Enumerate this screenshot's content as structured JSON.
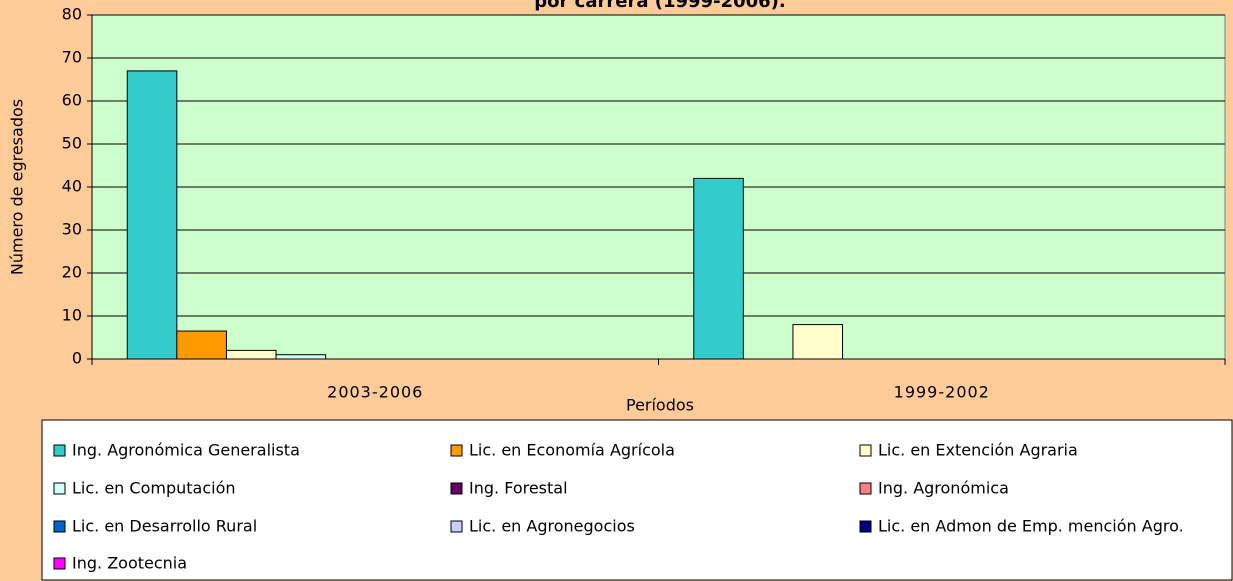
{
  "chart_data": {
    "type": "bar",
    "title": "por carrera (1999-2006).",
    "x_label": "Períodos",
    "y_label": "Número de egresados",
    "categories": [
      "2003-2006",
      "1999-2002"
    ],
    "series": [
      {
        "name": "Ing. Agronómica Generalista",
        "color": "#33CCCC",
        "values": [
          67,
          42
        ]
      },
      {
        "name": "Lic. en Economía Agrícola",
        "color": "#FF9900",
        "values": [
          6.5,
          0
        ]
      },
      {
        "name": "Lic. en Extención Agraria",
        "color": "#FFFFCC",
        "values": [
          2,
          8
        ]
      },
      {
        "name": "Lic. en Computación",
        "color": "#CCFFFF",
        "values": [
          1,
          0
        ]
      },
      {
        "name": "Ing. Forestal",
        "color": "#660066",
        "values": [
          0,
          0
        ]
      },
      {
        "name": "Ing. Agronómica",
        "color": "#FF8080",
        "values": [
          0,
          0
        ]
      },
      {
        "name": "Lic. en Desarrollo Rural",
        "color": "#0066CC",
        "values": [
          0,
          0
        ]
      },
      {
        "name": "Lic. en Agronegocios",
        "color": "#CCCCFF",
        "values": [
          0,
          0
        ]
      },
      {
        "name": "Lic. en Admon de Emp. mención Agro.",
        "color": "#000080",
        "values": [
          0,
          0
        ]
      },
      {
        "name": "Ing. Zootecnia",
        "color": "#FF00FF",
        "values": [
          0,
          0
        ]
      }
    ],
    "ylim": [
      0,
      80
    ],
    "yticks": [
      0,
      10,
      20,
      30,
      40,
      50,
      60,
      70,
      80
    ],
    "grid": true
  }
}
